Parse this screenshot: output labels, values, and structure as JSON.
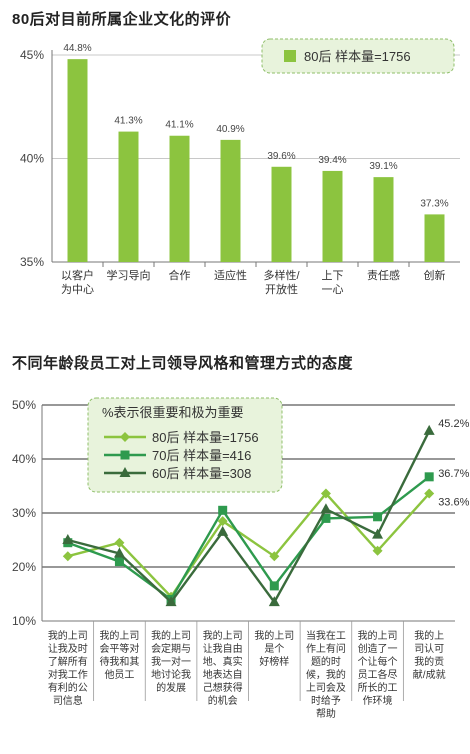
{
  "chart_data": [
    {
      "type": "bar",
      "title": "80后对目前所属企业文化的评价",
      "legend": "80后  样本量=1756",
      "legend_position": "top-right",
      "categories": [
        "以客户\n为中心",
        "学习导向",
        "合作",
        "适应性",
        "多样性/\n开放性",
        "上下\n一心",
        "责任感",
        "创新"
      ],
      "values": [
        44.8,
        41.3,
        41.1,
        40.9,
        39.6,
        39.4,
        39.1,
        37.3
      ],
      "value_labels": [
        "44.8%",
        "41.3%",
        "41.1%",
        "40.9%",
        "39.6%",
        "39.4%",
        "39.1%",
        "37.3%"
      ],
      "ylim": [
        35,
        45
      ],
      "yticks": [
        "35%",
        "40%",
        "45%"
      ],
      "grid": true,
      "colors": {
        "bar": "#8cc43f",
        "legend_bg": "#e8f3dc"
      }
    },
    {
      "type": "line",
      "title": "不同年龄段员工对上司领导风格和管理方式的态度",
      "legend_title": "%表示很重要和极为重要",
      "legend_position": "top-left",
      "categories": [
        "我的上司\n让我及时\n了解所有\n对我工作\n有利的公\n司信息",
        "我的上司\n会平等对\n待我和其\n他员工",
        "我的上司\n会定期与\n我一对一\n地讨论我\n的发展",
        "我的上司\n让我自由\n地、真实\n地表达自\n己想获得\n的机会",
        "我的上司\n是个\n好榜样",
        "当我在工\n作上有问\n题的时\n候，我的\n上司会及\n时给予\n帮助",
        "我的上司\n创造了一\n个让每个\n员工各尽\n所长的工\n作环境",
        "我的上\n司认可\n我的贡\n献/成就"
      ],
      "series": [
        {
          "name": "80后  样本量=1756",
          "marker": "diamond",
          "color": "#8cc43f",
          "values": [
            22,
            24.5,
            14.5,
            28.5,
            22,
            33.6,
            23,
            33.6
          ],
          "end_label": "33.6%"
        },
        {
          "name": "70后  样本量=416",
          "marker": "square",
          "color": "#2e9a4e",
          "values": [
            24.5,
            21,
            14,
            30.5,
            16.5,
            29,
            29.3,
            36.7
          ],
          "end_label": "36.7%"
        },
        {
          "name": "60后  样本量=308",
          "marker": "triangle",
          "color": "#3a6b3c",
          "values": [
            25,
            22.5,
            13.5,
            26.5,
            13.5,
            30.7,
            26,
            45.2
          ],
          "end_label": "45.2%"
        }
      ],
      "ylim": [
        10,
        50
      ],
      "yticks": [
        "10%",
        "20%",
        "30%",
        "40%",
        "50%"
      ],
      "grid": true,
      "colors": {
        "legend_bg": "#e8f3dc"
      }
    }
  ]
}
